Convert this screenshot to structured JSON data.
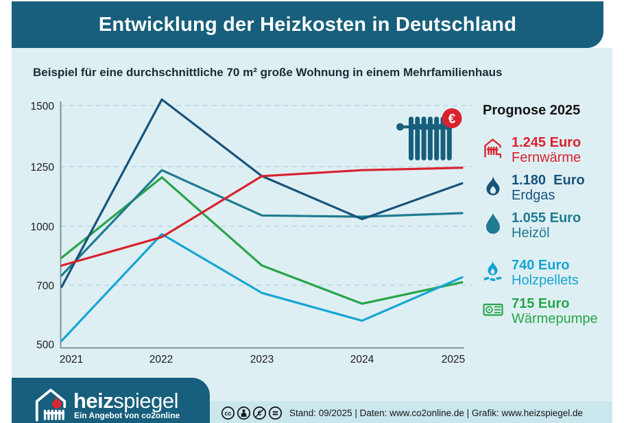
{
  "header": {
    "title": "Entwicklung der Heizkosten in Deutschland"
  },
  "subtitle": "Beispiel für eine durchschnittliche 70 m² große Wohnung in einem Mehrfamilienhaus",
  "colors": {
    "header_bg": "#175f7c",
    "content_bg": "#deeff3",
    "footer_band": "#cbe7ee",
    "axis": "#77898f",
    "gridline": "#b3d9e1",
    "fernwaerme_red": "#d8232f",
    "erdgas_darkblue": "#17537c",
    "heizoel_teal": "#1f7b91",
    "holzpellets_lightblue": "#16a5d3",
    "waermepumpe_green": "#28a54a"
  },
  "chart_data": {
    "type": "line",
    "title": "Entwicklung der Heizkosten in Deutschland",
    "subtitle": "Beispiel für eine durchschnittliche 70 m² große Wohnung in einem Mehrfamilienhaus",
    "x": [
      "2021",
      "2022",
      "2023",
      "2024",
      "2025"
    ],
    "y_ticks": [
      "1500",
      "1250",
      "1000",
      "700",
      "500"
    ],
    "y_axis_note": "non-linear spacing as drawn: 500/700/1000/1250/1500 at equal pixel steps",
    "grid": "dashed horizontal lines at 700, 1000, 1250, 1500",
    "unit": "Euro",
    "series": [
      {
        "name": "Fernwärme",
        "color": "#d8232f",
        "values": [
          800,
          945,
          1210,
          1235,
          1245
        ]
      },
      {
        "name": "Erdgas",
        "color": "#17537c",
        "values": [
          695,
          1525,
          1210,
          1030,
          1180
        ]
      },
      {
        "name": "Heizöl",
        "color": "#1f7b91",
        "values": [
          750,
          1235,
          1045,
          1040,
          1055
        ]
      },
      {
        "name": "Holzpellets",
        "color": "#16a5d3",
        "values": [
          520,
          960,
          675,
          585,
          740
        ]
      },
      {
        "name": "Wärmepumpe",
        "color": "#28a54a",
        "values": [
          840,
          1205,
          800,
          640,
          715
        ]
      }
    ]
  },
  "legend": {
    "heading": "Prognose 2025",
    "items": [
      {
        "value": "1.245 Euro",
        "label": "Fernwärme",
        "icon": "district-heating-icon",
        "color": "#d8232f"
      },
      {
        "value": "1.180  Euro",
        "label": "Erdgas",
        "icon": "gas-flame-icon",
        "color": "#17537c"
      },
      {
        "value": "1.055 Euro",
        "label": "Heizöl",
        "icon": "oil-drop-icon",
        "color": "#1f7b91"
      },
      {
        "value": "740 Euro",
        "label": "Holzpellets",
        "icon": "pellet-fire-icon",
        "color": "#16a5d3"
      },
      {
        "value": "715 Euro",
        "label": "Wärmepumpe",
        "icon": "heat-pump-icon",
        "color": "#28a54a"
      }
    ]
  },
  "chart_icon": {
    "euro_symbol": "€"
  },
  "footer": {
    "logo_bold": "heiz",
    "logo_light": "spiegel",
    "tagline": "Ein Angebot von co2online",
    "license_icons": [
      "cc",
      "by",
      "nc-eu",
      "nd"
    ],
    "info": "Stand: 09/2025  |  Daten: www.co2online.de  |  Grafik: www.heizspiegel.de"
  }
}
